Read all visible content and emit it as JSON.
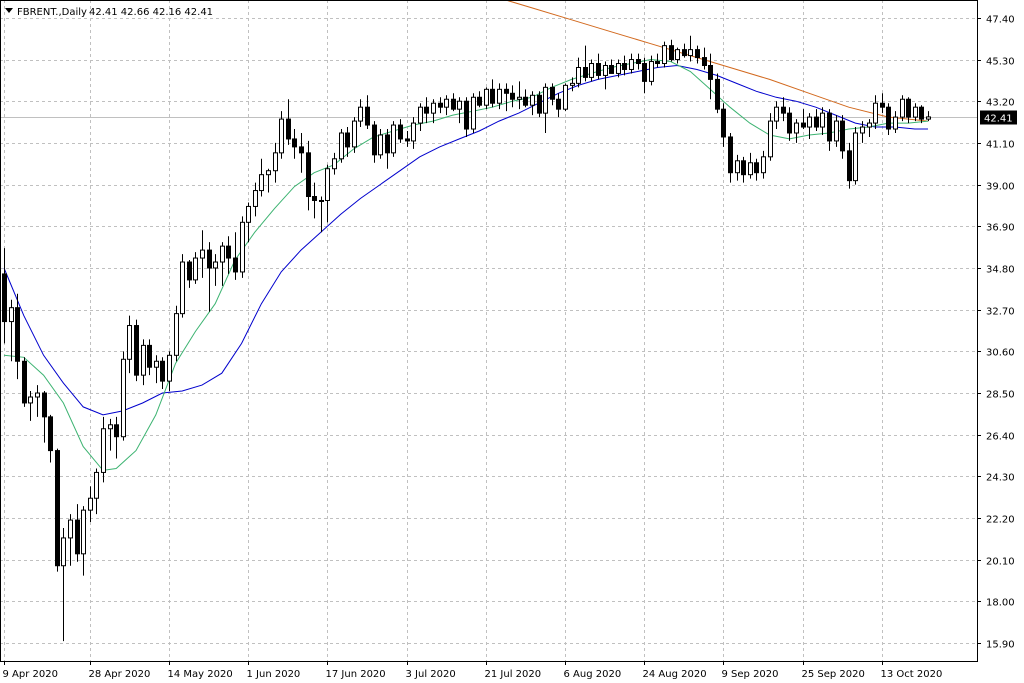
{
  "header": {
    "symbol_label": "FBRENT.,Daily",
    "ohlc_label": "42.41 42.66 42.16 42.41"
  },
  "colors": {
    "background": "#ffffff",
    "grid": "#c0c0c0",
    "frame": "#000000",
    "bull_fill": "#ffffff",
    "bear_fill": "#000000",
    "candle_outline": "#000000",
    "ma_fast": "#3cb371",
    "ma_medium": "#0000cd",
    "ma_slow": "#d2691e",
    "price_tag_bg": "#000000",
    "price_line": "#c0c0c0"
  },
  "chart_data": {
    "type": "candlestick",
    "title": "FBRENT.,Daily",
    "current_price": 42.41,
    "current_price_label": "42.41",
    "ylim": [
      15.0,
      48.3
    ],
    "grid": true,
    "y_ticks": [
      "47.40",
      "45.30",
      "43.20",
      "41.10",
      "39.00",
      "36.90",
      "34.80",
      "32.70",
      "30.60",
      "28.50",
      "26.40",
      "24.30",
      "22.20",
      "20.10",
      "18.00",
      "15.90"
    ],
    "x_ticks": [
      {
        "label": "9 Apr 2020",
        "i": 0
      },
      {
        "label": "28 Apr 2020",
        "i": 13
      },
      {
        "label": "14 May 2020",
        "i": 25
      },
      {
        "label": "1 Jun 2020",
        "i": 37
      },
      {
        "label": "17 Jun 2020",
        "i": 49
      },
      {
        "label": "3 Jul 2020",
        "i": 61
      },
      {
        "label": "21 Jul 2020",
        "i": 73
      },
      {
        "label": "6 Aug 2020",
        "i": 85
      },
      {
        "label": "24 Aug 2020",
        "i": 97
      },
      {
        "label": "9 Sep 2020",
        "i": 109
      },
      {
        "label": "25 Sep 2020",
        "i": 121
      },
      {
        "label": "13 Oct 2020",
        "i": 133
      }
    ],
    "candles": [
      [
        34.5,
        35.8,
        31.0,
        32.1
      ],
      [
        32.1,
        33.2,
        30.1,
        32.8
      ],
      [
        32.8,
        33.5,
        29.2,
        30.1
      ],
      [
        30.1,
        30.3,
        27.8,
        28.0
      ],
      [
        28.0,
        28.6,
        27.1,
        28.3
      ],
      [
        28.3,
        28.9,
        27.3,
        28.5
      ],
      [
        28.5,
        28.6,
        26.0,
        27.3
      ],
      [
        27.3,
        27.4,
        25.0,
        25.6
      ],
      [
        25.6,
        25.7,
        19.5,
        19.8
      ],
      [
        19.8,
        21.7,
        16.0,
        21.2
      ],
      [
        21.2,
        22.4,
        19.8,
        22.1
      ],
      [
        22.1,
        22.9,
        20.0,
        20.4
      ],
      [
        20.4,
        22.8,
        19.3,
        22.6
      ],
      [
        22.6,
        23.8,
        22.0,
        23.2
      ],
      [
        23.2,
        24.7,
        22.4,
        24.5
      ],
      [
        24.5,
        27.3,
        24.0,
        26.7
      ],
      [
        26.7,
        27.2,
        25.6,
        26.9
      ],
      [
        26.9,
        27.3,
        25.2,
        26.3
      ],
      [
        26.3,
        30.6,
        26.1,
        30.2
      ],
      [
        30.2,
        32.4,
        29.5,
        31.9
      ],
      [
        31.9,
        32.2,
        29.1,
        29.4
      ],
      [
        29.4,
        31.2,
        28.9,
        30.9
      ],
      [
        30.9,
        31.2,
        29.4,
        29.8
      ],
      [
        29.8,
        30.4,
        29.0,
        30.1
      ],
      [
        30.1,
        30.3,
        28.7,
        29.1
      ],
      [
        29.1,
        30.6,
        28.6,
        30.4
      ],
      [
        30.4,
        32.9,
        30.1,
        32.5
      ],
      [
        32.5,
        35.5,
        32.3,
        35.1
      ],
      [
        35.1,
        35.2,
        33.8,
        34.2
      ],
      [
        34.2,
        35.6,
        34.0,
        35.3
      ],
      [
        35.3,
        36.7,
        34.3,
        35.7
      ],
      [
        35.7,
        36.1,
        32.6,
        34.8
      ],
      [
        34.8,
        35.5,
        33.9,
        35.1
      ],
      [
        35.1,
        36.1,
        33.9,
        35.9
      ],
      [
        35.9,
        36.4,
        34.5,
        35.3
      ],
      [
        35.3,
        36.6,
        34.2,
        34.6
      ],
      [
        34.6,
        37.4,
        34.3,
        37.1
      ],
      [
        37.1,
        38.1,
        36.1,
        37.9
      ],
      [
        37.9,
        39.1,
        37.4,
        38.7
      ],
      [
        38.7,
        40.3,
        38.4,
        39.5
      ],
      [
        39.5,
        39.8,
        38.6,
        39.7
      ],
      [
        39.7,
        41.1,
        39.1,
        40.6
      ],
      [
        40.6,
        42.7,
        40.3,
        42.3
      ],
      [
        42.3,
        43.3,
        41.0,
        41.3
      ],
      [
        41.3,
        41.8,
        40.3,
        40.9
      ],
      [
        40.9,
        41.6,
        39.6,
        40.6
      ],
      [
        40.6,
        41.2,
        37.7,
        38.4
      ],
      [
        38.4,
        39.1,
        37.3,
        38.2
      ],
      [
        38.2,
        38.4,
        36.6,
        38.2
      ],
      [
        38.2,
        40.0,
        37.1,
        39.8
      ],
      [
        39.8,
        40.6,
        39.5,
        40.3
      ],
      [
        40.3,
        41.8,
        40.1,
        41.6
      ],
      [
        41.6,
        41.9,
        40.4,
        40.9
      ],
      [
        40.9,
        42.4,
        40.6,
        42.2
      ],
      [
        42.2,
        43.3,
        41.9,
        42.9
      ],
      [
        42.9,
        43.5,
        41.8,
        42.0
      ],
      [
        42.0,
        42.2,
        40.1,
        40.5
      ],
      [
        40.5,
        41.8,
        40.3,
        41.5
      ],
      [
        41.5,
        41.8,
        39.8,
        40.6
      ],
      [
        40.6,
        42.2,
        40.4,
        42.0
      ],
      [
        42.0,
        42.3,
        41.1,
        41.3
      ],
      [
        41.3,
        41.7,
        40.9,
        41.2
      ],
      [
        41.2,
        42.4,
        40.8,
        42.1
      ],
      [
        42.1,
        43.1,
        41.7,
        42.9
      ],
      [
        42.9,
        43.4,
        42.1,
        42.6
      ],
      [
        42.6,
        43.3,
        42.1,
        43.1
      ],
      [
        43.1,
        43.4,
        42.6,
        42.9
      ],
      [
        42.9,
        43.5,
        42.5,
        43.3
      ],
      [
        43.3,
        43.6,
        42.7,
        42.8
      ],
      [
        42.8,
        43.4,
        42.1,
        43.2
      ],
      [
        43.2,
        43.4,
        41.4,
        41.8
      ],
      [
        41.8,
        43.6,
        41.6,
        43.4
      ],
      [
        43.4,
        43.7,
        42.9,
        43.0
      ],
      [
        43.0,
        43.9,
        42.8,
        43.8
      ],
      [
        43.8,
        44.3,
        42.9,
        43.1
      ],
      [
        43.1,
        44.1,
        42.8,
        43.8
      ],
      [
        43.8,
        44.1,
        42.7,
        43.6
      ],
      [
        43.6,
        44.0,
        42.9,
        43.3
      ],
      [
        43.3,
        44.2,
        42.8,
        43.4
      ],
      [
        43.4,
        43.8,
        42.9,
        43.0
      ],
      [
        43.0,
        43.7,
        42.5,
        43.5
      ],
      [
        43.5,
        43.7,
        42.4,
        42.6
      ],
      [
        42.6,
        44.1,
        41.6,
        43.9
      ],
      [
        43.9,
        44.1,
        43.0,
        43.3
      ],
      [
        43.3,
        43.6,
        42.4,
        42.8
      ],
      [
        42.8,
        44.1,
        42.7,
        44.0
      ],
      [
        44.0,
        44.4,
        43.7,
        44.1
      ],
      [
        44.1,
        45.4,
        43.9,
        44.9
      ],
      [
        44.9,
        46.0,
        44.2,
        44.4
      ],
      [
        44.4,
        45.3,
        44.2,
        45.1
      ],
      [
        45.1,
        45.6,
        44.3,
        44.5
      ],
      [
        44.5,
        45.2,
        43.8,
        45.0
      ],
      [
        45.0,
        45.3,
        44.6,
        44.6
      ],
      [
        44.6,
        45.3,
        44.4,
        45.1
      ],
      [
        45.1,
        45.5,
        44.5,
        44.8
      ],
      [
        44.8,
        45.6,
        44.6,
        45.3
      ],
      [
        45.3,
        45.6,
        44.8,
        45.1
      ],
      [
        45.1,
        45.4,
        43.6,
        44.2
      ],
      [
        44.2,
        45.5,
        44.0,
        45.2
      ],
      [
        45.2,
        45.6,
        44.9,
        45.1
      ],
      [
        45.1,
        46.2,
        44.9,
        46.0
      ],
      [
        46.0,
        46.3,
        45.2,
        45.3
      ],
      [
        45.3,
        45.9,
        45.1,
        45.8
      ],
      [
        45.8,
        46.1,
        45.4,
        45.5
      ],
      [
        45.5,
        46.5,
        45.2,
        45.8
      ],
      [
        45.8,
        46.0,
        45.1,
        45.4
      ],
      [
        45.4,
        45.9,
        44.8,
        45.0
      ],
      [
        45.0,
        45.6,
        43.3,
        44.3
      ],
      [
        44.3,
        44.6,
        42.6,
        42.8
      ],
      [
        42.8,
        43.1,
        40.9,
        41.4
      ],
      [
        41.4,
        41.6,
        39.1,
        39.6
      ],
      [
        39.6,
        40.5,
        39.2,
        40.2
      ],
      [
        40.2,
        40.4,
        39.1,
        39.5
      ],
      [
        39.5,
        40.6,
        39.3,
        40.1
      ],
      [
        40.1,
        40.3,
        39.2,
        39.6
      ],
      [
        39.6,
        40.7,
        39.3,
        40.4
      ],
      [
        40.4,
        42.6,
        40.2,
        42.2
      ],
      [
        42.2,
        43.2,
        41.8,
        42.9
      ],
      [
        42.9,
        43.4,
        42.2,
        42.6
      ],
      [
        42.6,
        42.9,
        41.2,
        41.6
      ],
      [
        41.6,
        42.3,
        41.1,
        42.1
      ],
      [
        42.1,
        42.8,
        41.8,
        41.9
      ],
      [
        41.9,
        42.6,
        41.3,
        42.4
      ],
      [
        42.4,
        42.8,
        41.7,
        41.9
      ],
      [
        41.9,
        42.9,
        41.5,
        42.6
      ],
      [
        42.6,
        42.8,
        40.7,
        41.2
      ],
      [
        41.2,
        42.5,
        40.9,
        42.2
      ],
      [
        42.2,
        42.5,
        40.3,
        40.7
      ],
      [
        40.7,
        41.1,
        38.8,
        39.2
      ],
      [
        39.2,
        41.9,
        39.0,
        41.6
      ],
      [
        41.6,
        42.2,
        41.1,
        41.9
      ],
      [
        41.9,
        42.3,
        41.4,
        42.1
      ],
      [
        42.1,
        43.5,
        41.8,
        43.1
      ],
      [
        43.1,
        43.6,
        42.6,
        42.9
      ],
      [
        42.9,
        43.1,
        41.5,
        41.8
      ],
      [
        41.8,
        42.7,
        41.6,
        42.4
      ],
      [
        42.4,
        43.5,
        42.2,
        43.3
      ],
      [
        43.3,
        43.4,
        42.1,
        42.4
      ],
      [
        42.4,
        43.1,
        42.2,
        42.9
      ],
      [
        42.9,
        43.0,
        42.1,
        42.3
      ],
      [
        42.3,
        42.7,
        42.2,
        42.41
      ]
    ],
    "ma_fast": [
      [
        0,
        30.4
      ],
      [
        3,
        30.3
      ],
      [
        6,
        29.4
      ],
      [
        9,
        28.0
      ],
      [
        12,
        25.8
      ],
      [
        15,
        24.6
      ],
      [
        17,
        24.7
      ],
      [
        20,
        25.6
      ],
      [
        23,
        27.4
      ],
      [
        26,
        30.0
      ],
      [
        29,
        31.6
      ],
      [
        32,
        33.0
      ],
      [
        35,
        35.2
      ],
      [
        38,
        36.6
      ],
      [
        41,
        37.8
      ],
      [
        44,
        38.9
      ],
      [
        47,
        39.6
      ],
      [
        50,
        40.0
      ],
      [
        53,
        40.8
      ],
      [
        56,
        41.4
      ],
      [
        59,
        41.7
      ],
      [
        62,
        42.0
      ],
      [
        65,
        42.2
      ],
      [
        68,
        42.5
      ],
      [
        71,
        42.7
      ],
      [
        74,
        42.9
      ],
      [
        77,
        43.2
      ],
      [
        80,
        43.4
      ],
      [
        83,
        43.9
      ],
      [
        86,
        44.3
      ],
      [
        89,
        44.6
      ],
      [
        92,
        44.9
      ],
      [
        95,
        45.1
      ],
      [
        98,
        45.3
      ],
      [
        101,
        45.2
      ],
      [
        104,
        44.7
      ],
      [
        107,
        43.8
      ],
      [
        110,
        42.9
      ],
      [
        113,
        42.1
      ],
      [
        116,
        41.5
      ],
      [
        119,
        41.3
      ],
      [
        122,
        41.5
      ],
      [
        125,
        41.6
      ],
      [
        128,
        41.8
      ],
      [
        131,
        41.9
      ],
      [
        134,
        42.1
      ],
      [
        137,
        42.1
      ],
      [
        140,
        42.2
      ]
    ],
    "ma_medium": [
      [
        0,
        34.8
      ],
      [
        3,
        32.4
      ],
      [
        6,
        30.4
      ],
      [
        9,
        29.0
      ],
      [
        12,
        27.8
      ],
      [
        15,
        27.4
      ],
      [
        18,
        27.6
      ],
      [
        21,
        28.0
      ],
      [
        24,
        28.5
      ],
      [
        27,
        28.6
      ],
      [
        30,
        28.9
      ],
      [
        33,
        29.5
      ],
      [
        36,
        31.0
      ],
      [
        39,
        33.0
      ],
      [
        42,
        34.6
      ],
      [
        45,
        35.7
      ],
      [
        48,
        36.6
      ],
      [
        51,
        37.5
      ],
      [
        54,
        38.3
      ],
      [
        57,
        39.0
      ],
      [
        60,
        39.7
      ],
      [
        63,
        40.4
      ],
      [
        66,
        40.9
      ],
      [
        69,
        41.3
      ],
      [
        72,
        41.7
      ],
      [
        75,
        42.2
      ],
      [
        78,
        42.6
      ],
      [
        81,
        43.1
      ],
      [
        84,
        43.6
      ],
      [
        87,
        44.0
      ],
      [
        90,
        44.3
      ],
      [
        93,
        44.5
      ],
      [
        96,
        44.7
      ],
      [
        99,
        44.9
      ],
      [
        102,
        45.0
      ],
      [
        105,
        44.8
      ],
      [
        108,
        44.5
      ],
      [
        111,
        44.1
      ],
      [
        114,
        43.7
      ],
      [
        117,
        43.4
      ],
      [
        120,
        43.2
      ],
      [
        123,
        42.9
      ],
      [
        126,
        42.5
      ],
      [
        129,
        42.1
      ],
      [
        132,
        41.9
      ],
      [
        135,
        41.9
      ],
      [
        138,
        41.8
      ],
      [
        140,
        41.8
      ]
    ],
    "ma_slow": [
      [
        74,
        48.5
      ],
      [
        80,
        47.9
      ],
      [
        86,
        47.3
      ],
      [
        92,
        46.7
      ],
      [
        98,
        46.1
      ],
      [
        104,
        45.5
      ],
      [
        110,
        44.9
      ],
      [
        116,
        44.3
      ],
      [
        122,
        43.6
      ],
      [
        128,
        42.9
      ],
      [
        134,
        42.4
      ],
      [
        140,
        42.2
      ]
    ]
  }
}
